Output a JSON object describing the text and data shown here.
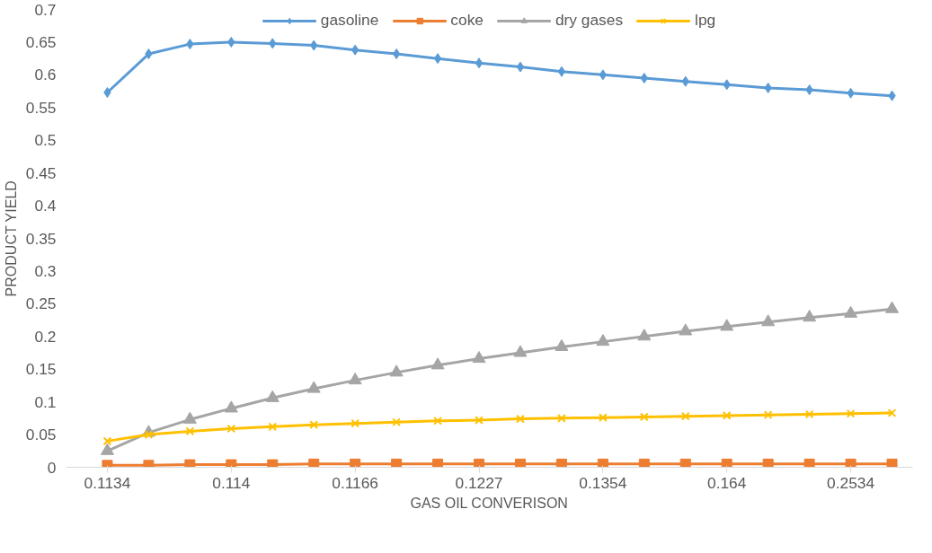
{
  "chart_data": {
    "type": "line",
    "xlabel": "GAS OIL CONVERISON",
    "ylabel": "PRODUCT YIELD",
    "categories": [
      "0.1134",
      null,
      null,
      "0.114",
      null,
      null,
      "0.1166",
      null,
      null,
      "0.1227",
      null,
      null,
      "0.1354",
      null,
      null,
      "0.164",
      null,
      null,
      "0.2534",
      null
    ],
    "ylim": [
      0,
      0.7
    ],
    "yticks": [
      0,
      0.05,
      0.1,
      0.15,
      0.2,
      0.25,
      0.3,
      0.35,
      0.4,
      0.45,
      0.5,
      0.55,
      0.6,
      0.65,
      0.7
    ],
    "grid": false,
    "legend": "top",
    "series": [
      {
        "name": "gasoline",
        "color": "#5b9bd5",
        "marker": "diamond",
        "values": [
          0.573,
          0.632,
          0.647,
          0.65,
          0.648,
          0.645,
          0.638,
          0.632,
          0.625,
          0.618,
          0.612,
          0.605,
          0.6,
          0.595,
          0.59,
          0.585,
          0.58,
          0.577,
          0.572,
          0.568
        ]
      },
      {
        "name": "coke",
        "color": "#ed7d31",
        "marker": "square",
        "values": [
          0.003,
          0.003,
          0.004,
          0.004,
          0.004,
          0.005,
          0.005,
          0.005,
          0.005,
          0.005,
          0.005,
          0.005,
          0.005,
          0.005,
          0.005,
          0.005,
          0.005,
          0.005,
          0.005,
          0.005
        ]
      },
      {
        "name": "dry gases",
        "color": "#a5a5a5",
        "marker": "triangle",
        "values": [
          0.025,
          0.053,
          0.073,
          0.09,
          0.106,
          0.12,
          0.133,
          0.145,
          0.156,
          0.166,
          0.175,
          0.184,
          0.192,
          0.2,
          0.208,
          0.215,
          0.222,
          0.229,
          0.235,
          0.242
        ]
      },
      {
        "name": "lpg",
        "color": "#ffc000",
        "marker": "cross",
        "values": [
          0.04,
          0.05,
          0.055,
          0.059,
          0.062,
          0.065,
          0.067,
          0.069,
          0.071,
          0.072,
          0.074,
          0.075,
          0.076,
          0.077,
          0.078,
          0.079,
          0.08,
          0.081,
          0.082,
          0.083
        ]
      }
    ]
  }
}
